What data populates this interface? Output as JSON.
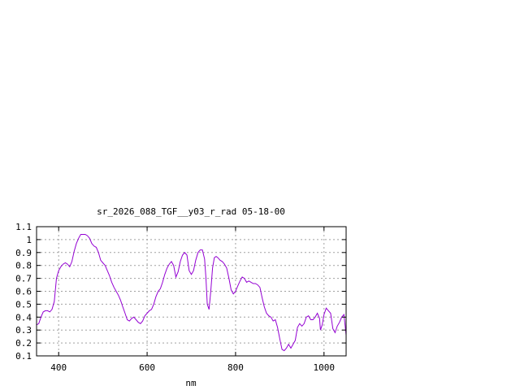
{
  "chart_data": {
    "type": "line",
    "title": "sr_2026_088_TGF__y03_r_rad 05-18-00",
    "xlabel": "nm",
    "ylabel": "",
    "xlim": [
      350,
      1050
    ],
    "ylim": [
      0.1,
      1.1
    ],
    "x_ticks": [
      400,
      600,
      800,
      1000
    ],
    "y_ticks": [
      0.1,
      0.2,
      0.3,
      0.4,
      0.5,
      0.6,
      0.7,
      0.8,
      0.9,
      1,
      1.1
    ],
    "grid": true,
    "colors": {
      "series": "#9400d3",
      "grid": "#a0a0a0",
      "axis": "#000000"
    },
    "series": [
      {
        "points": [
          [
            350,
            0.34
          ],
          [
            355,
            0.35
          ],
          [
            360,
            0.4
          ],
          [
            365,
            0.44
          ],
          [
            370,
            0.45
          ],
          [
            375,
            0.45
          ],
          [
            380,
            0.44
          ],
          [
            385,
            0.46
          ],
          [
            390,
            0.52
          ],
          [
            395,
            0.7
          ],
          [
            400,
            0.76
          ],
          [
            405,
            0.79
          ],
          [
            410,
            0.81
          ],
          [
            415,
            0.82
          ],
          [
            420,
            0.81
          ],
          [
            425,
            0.79
          ],
          [
            430,
            0.83
          ],
          [
            435,
            0.91
          ],
          [
            440,
            0.97
          ],
          [
            445,
            1.01
          ],
          [
            450,
            1.04
          ],
          [
            455,
            1.04
          ],
          [
            460,
            1.04
          ],
          [
            465,
            1.03
          ],
          [
            470,
            1.01
          ],
          [
            475,
            0.97
          ],
          [
            480,
            0.95
          ],
          [
            485,
            0.94
          ],
          [
            490,
            0.9
          ],
          [
            495,
            0.84
          ],
          [
            500,
            0.82
          ],
          [
            505,
            0.8
          ],
          [
            510,
            0.76
          ],
          [
            515,
            0.72
          ],
          [
            520,
            0.67
          ],
          [
            525,
            0.63
          ],
          [
            530,
            0.6
          ],
          [
            535,
            0.57
          ],
          [
            540,
            0.53
          ],
          [
            545,
            0.48
          ],
          [
            550,
            0.43
          ],
          [
            555,
            0.38
          ],
          [
            560,
            0.37
          ],
          [
            565,
            0.39
          ],
          [
            570,
            0.4
          ],
          [
            575,
            0.38
          ],
          [
            580,
            0.36
          ],
          [
            585,
            0.35
          ],
          [
            590,
            0.37
          ],
          [
            595,
            0.41
          ],
          [
            600,
            0.43
          ],
          [
            605,
            0.45
          ],
          [
            610,
            0.46
          ],
          [
            615,
            0.5
          ],
          [
            620,
            0.56
          ],
          [
            625,
            0.6
          ],
          [
            630,
            0.62
          ],
          [
            635,
            0.67
          ],
          [
            640,
            0.73
          ],
          [
            645,
            0.78
          ],
          [
            650,
            0.81
          ],
          [
            655,
            0.83
          ],
          [
            660,
            0.8
          ],
          [
            665,
            0.71
          ],
          [
            670,
            0.75
          ],
          [
            675,
            0.83
          ],
          [
            680,
            0.88
          ],
          [
            685,
            0.9
          ],
          [
            690,
            0.88
          ],
          [
            695,
            0.76
          ],
          [
            700,
            0.73
          ],
          [
            705,
            0.76
          ],
          [
            710,
            0.84
          ],
          [
            715,
            0.9
          ],
          [
            720,
            0.92
          ],
          [
            725,
            0.92
          ],
          [
            730,
            0.85
          ],
          [
            733,
            0.7
          ],
          [
            736,
            0.5
          ],
          [
            740,
            0.46
          ],
          [
            744,
            0.6
          ],
          [
            748,
            0.78
          ],
          [
            752,
            0.86
          ],
          [
            756,
            0.87
          ],
          [
            760,
            0.86
          ],
          [
            765,
            0.84
          ],
          [
            770,
            0.83
          ],
          [
            775,
            0.81
          ],
          [
            780,
            0.78
          ],
          [
            785,
            0.7
          ],
          [
            790,
            0.61
          ],
          [
            795,
            0.58
          ],
          [
            800,
            0.6
          ],
          [
            805,
            0.64
          ],
          [
            810,
            0.68
          ],
          [
            815,
            0.71
          ],
          [
            820,
            0.7
          ],
          [
            825,
            0.67
          ],
          [
            830,
            0.68
          ],
          [
            835,
            0.67
          ],
          [
            840,
            0.66
          ],
          [
            845,
            0.66
          ],
          [
            850,
            0.65
          ],
          [
            855,
            0.63
          ],
          [
            860,
            0.55
          ],
          [
            865,
            0.48
          ],
          [
            870,
            0.43
          ],
          [
            875,
            0.41
          ],
          [
            880,
            0.4
          ],
          [
            885,
            0.37
          ],
          [
            890,
            0.38
          ],
          [
            895,
            0.32
          ],
          [
            900,
            0.23
          ],
          [
            905,
            0.15
          ],
          [
            910,
            0.14
          ],
          [
            915,
            0.16
          ],
          [
            920,
            0.19
          ],
          [
            925,
            0.16
          ],
          [
            930,
            0.19
          ],
          [
            935,
            0.22
          ],
          [
            940,
            0.32
          ],
          [
            945,
            0.35
          ],
          [
            950,
            0.33
          ],
          [
            955,
            0.35
          ],
          [
            960,
            0.4
          ],
          [
            965,
            0.41
          ],
          [
            970,
            0.38
          ],
          [
            975,
            0.38
          ],
          [
            980,
            0.4
          ],
          [
            985,
            0.43
          ],
          [
            990,
            0.39
          ],
          [
            992,
            0.3
          ],
          [
            996,
            0.34
          ],
          [
            1000,
            0.42
          ],
          [
            1005,
            0.47
          ],
          [
            1010,
            0.45
          ],
          [
            1015,
            0.43
          ],
          [
            1020,
            0.31
          ],
          [
            1025,
            0.28
          ],
          [
            1030,
            0.33
          ],
          [
            1035,
            0.36
          ],
          [
            1040,
            0.4
          ],
          [
            1045,
            0.42
          ],
          [
            1050,
            0.26
          ]
        ]
      }
    ]
  }
}
